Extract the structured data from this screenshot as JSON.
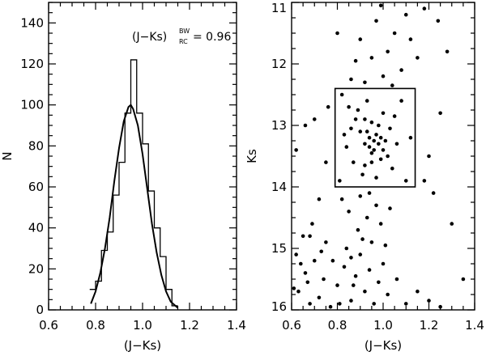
{
  "chart_data": [
    {
      "type": "bar",
      "subtype": "histogram-with-gaussian-fit",
      "xlabel": "(J−Ks)",
      "ylabel": "N",
      "xlim": [
        0.6,
        1.4
      ],
      "ylim": [
        0,
        150
      ],
      "xticks": [
        "0.6",
        "0.8",
        "1.0",
        "1.2",
        "1.4"
      ],
      "yticks": [
        "0",
        "20",
        "40",
        "60",
        "80",
        "100",
        "120",
        "140"
      ],
      "annotation": {
        "prefix": "(J−Ks)",
        "superscript": "BW",
        "subscript": "RC",
        "value_text": "= 0.96"
      },
      "histogram": {
        "bin_edges": [
          0.775,
          0.8,
          0.825,
          0.85,
          0.875,
          0.9,
          0.925,
          0.95,
          0.975,
          1.0,
          1.025,
          1.05,
          1.075,
          1.1,
          1.125,
          1.15
        ],
        "counts": [
          10,
          14,
          29,
          38,
          56,
          72,
          96,
          122,
          96,
          81,
          58,
          40,
          26,
          10,
          2
        ]
      },
      "series": [
        {
          "type": "line",
          "x": [
            0.78,
            0.8,
            0.82,
            0.84,
            0.86,
            0.88,
            0.9,
            0.92,
            0.94,
            0.95,
            0.96,
            0.98,
            1.0,
            1.02,
            1.04,
            1.06,
            1.08,
            1.1,
            1.12,
            1.15
          ],
          "values": [
            3,
            9,
            18,
            30,
            45,
            63,
            79,
            92,
            99,
            100,
            98,
            90,
            76,
            59,
            42,
            28,
            17,
            9,
            4,
            1
          ]
        }
      ]
    },
    {
      "type": "scatter",
      "xlabel": "(J−Ks)",
      "ylabel": "Ks",
      "xlim": [
        0.6,
        1.4
      ],
      "ylim": [
        16,
        11
      ],
      "y_inverted": true,
      "xticks": [
        "0.6",
        "0.8",
        "1.0",
        "1.2",
        "1.4"
      ],
      "yticks": [
        "11",
        "12",
        "13",
        "14",
        "15",
        "16"
      ],
      "selection_box": {
        "x": [
          0.79,
          1.14
        ],
        "y": [
          12.4,
          14.0
        ]
      },
      "series": [
        {
          "points": [
            [
              0.63,
              15.7
            ],
            [
              0.66,
              15.4
            ],
            [
              0.68,
              15.9
            ],
            [
              0.7,
              15.2
            ],
            [
              0.72,
              15.8
            ],
            [
              0.74,
              15.5
            ],
            [
              0.62,
              15.1
            ],
            [
              0.65,
              14.8
            ],
            [
              0.77,
              15.95
            ],
            [
              0.8,
              15.6
            ],
            [
              0.83,
              15.3
            ],
            [
              0.86,
              15.85
            ],
            [
              0.88,
              15.45
            ],
            [
              0.9,
              15.1
            ],
            [
              0.92,
              15.7
            ],
            [
              0.94,
              15.35
            ],
            [
              0.96,
              15.9
            ],
            [
              0.98,
              15.55
            ],
            [
              1.0,
              15.25
            ],
            [
              1.02,
              15.75
            ],
            [
              0.78,
              15.2
            ],
            [
              0.81,
              15.9
            ],
            [
              0.84,
              15.0
            ],
            [
              0.87,
              15.6
            ],
            [
              0.91,
              14.85
            ],
            [
              0.93,
              14.5
            ],
            [
              0.95,
              14.9
            ],
            [
              0.97,
              14.3
            ],
            [
              0.89,
              14.7
            ],
            [
              0.85,
              14.4
            ],
            [
              0.99,
              14.6
            ],
            [
              1.01,
              14.95
            ],
            [
              0.82,
              14.2
            ],
            [
              0.9,
              14.15
            ],
            [
              0.94,
              14.1
            ],
            [
              1.03,
              14.35
            ],
            [
              0.86,
              15.15
            ],
            [
              0.75,
              14.9
            ],
            [
              0.69,
              14.6
            ],
            [
              0.64,
              15.25
            ],
            [
              1.06,
              15.5
            ],
            [
              1.1,
              15.9
            ],
            [
              1.15,
              15.7
            ],
            [
              1.2,
              15.85
            ],
            [
              1.25,
              15.95
            ],
            [
              0.73,
              15.05
            ],
            [
              0.67,
              15.55
            ],
            [
              0.61,
              15.65
            ],
            [
              0.82,
              12.5
            ],
            [
              0.85,
              12.7
            ],
            [
              0.88,
              12.9
            ],
            [
              0.9,
              13.1
            ],
            [
              0.92,
              13.3
            ],
            [
              0.94,
              13.2
            ],
            [
              0.96,
              13.4
            ],
            [
              0.98,
              13.0
            ],
            [
              1.0,
              12.8
            ],
            [
              1.02,
              13.5
            ],
            [
              1.04,
              13.7
            ],
            [
              1.06,
              13.3
            ],
            [
              1.08,
              12.6
            ],
            [
              1.1,
              13.9
            ],
            [
              0.87,
              13.6
            ],
            [
              0.91,
              13.8
            ],
            [
              0.93,
              12.6
            ],
            [
              0.95,
              12.95
            ],
            [
              0.97,
              13.15
            ],
            [
              0.99,
              13.55
            ],
            [
              1.01,
              13.25
            ],
            [
              0.84,
              13.35
            ],
            [
              0.86,
              13.05
            ],
            [
              0.89,
              12.75
            ],
            [
              0.92,
              13.65
            ],
            [
              0.95,
              13.45
            ],
            [
              0.97,
              13.85
            ],
            [
              1.03,
              13.05
            ],
            [
              1.05,
              12.85
            ],
            [
              1.12,
              13.2
            ],
            [
              0.81,
              13.9
            ],
            [
              0.83,
              13.15
            ],
            [
              0.96,
              13.25
            ],
            [
              0.94,
              13.35
            ],
            [
              0.98,
              13.3
            ],
            [
              0.93,
              13.1
            ],
            [
              0.99,
              13.2
            ],
            [
              0.95,
              13.6
            ],
            [
              1.0,
              13.4
            ],
            [
              0.92,
              12.9
            ],
            [
              0.9,
              11.6
            ],
            [
              0.95,
              11.9
            ],
            [
              1.0,
              12.2
            ],
            [
              1.05,
              11.5
            ],
            [
              0.97,
              11.3
            ],
            [
              1.02,
              11.8
            ],
            [
              1.1,
              11.2
            ],
            [
              1.15,
              11.9
            ],
            [
              1.08,
              12.1
            ],
            [
              0.92,
              12.3
            ],
            [
              0.88,
              11.95
            ],
            [
              1.12,
              11.6
            ],
            [
              1.18,
              11.1
            ],
            [
              0.99,
              11.05
            ],
            [
              1.04,
              12.35
            ],
            [
              0.86,
              12.25
            ],
            [
              0.7,
              12.9
            ],
            [
              0.75,
              13.6
            ],
            [
              0.62,
              13.4
            ],
            [
              0.72,
              14.2
            ],
            [
              0.66,
              13.0
            ],
            [
              0.68,
              14.8
            ],
            [
              1.2,
              13.5
            ],
            [
              1.25,
              12.8
            ],
            [
              1.22,
              14.1
            ],
            [
              1.3,
              14.6
            ],
            [
              1.35,
              15.5
            ],
            [
              1.28,
              11.8
            ],
            [
              0.8,
              11.5
            ],
            [
              0.76,
              12.7
            ],
            [
              1.18,
              13.9
            ],
            [
              1.24,
              11.3
            ]
          ]
        }
      ]
    }
  ]
}
